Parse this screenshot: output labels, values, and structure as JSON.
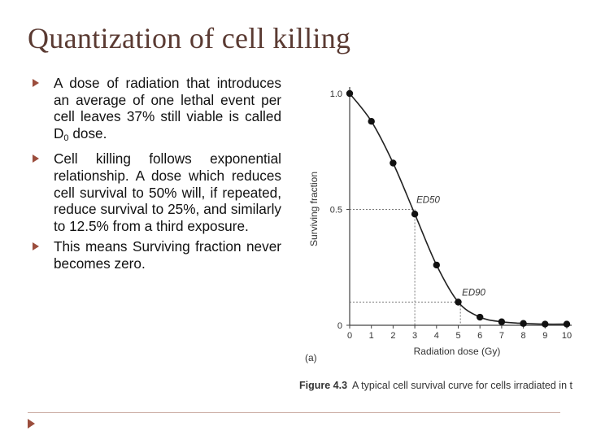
{
  "slide": {
    "title": "Quantization of cell killing",
    "bullets": [
      {
        "text_main": "A dose of radiation that introduces an average of one lethal event per cell leaves 37% still viable is called D",
        "subscript": "0",
        "text_after": " dose."
      },
      {
        "text_main": "Cell killing follows exponential relationship. A dose which reduces cell survival to 50% will, if repeated, reduce survival to 25%, and similarly to 12.5% from a third exposure.",
        "subscript": "",
        "text_after": ""
      },
      {
        "text_main": "This means Surviving  fraction never becomes zero.",
        "subscript": "",
        "text_after": ""
      }
    ]
  },
  "figure": {
    "panel_label": "(a)",
    "caption_prefix": "Figure 4.3",
    "caption_text": "A typical cell survival curve for cells irradiated in t"
  },
  "chart_data": {
    "type": "line",
    "title": "",
    "xlabel": "Radiation dose (Gy)",
    "ylabel": "Surviving fraction",
    "xlim": [
      0,
      10
    ],
    "ylim": [
      0,
      1.0
    ],
    "x_ticks": [
      "0",
      "1",
      "2",
      "3",
      "4",
      "5",
      "6",
      "7",
      "8",
      "9",
      "10"
    ],
    "y_ticks": [
      "0",
      "0.5",
      "1.0"
    ],
    "x": [
      0,
      1,
      2,
      3,
      4,
      5,
      6,
      7,
      8,
      9,
      10
    ],
    "series": [
      {
        "values": [
          1.0,
          0.88,
          0.7,
          0.48,
          0.26,
          0.1,
          0.035,
          0.015,
          0.008,
          0.005,
          0.005
        ]
      }
    ],
    "annotations": [
      {
        "text": "ED50",
        "x": 3,
        "y": 0.5
      },
      {
        "text": "ED90",
        "x": 5.1,
        "y": 0.1
      }
    ],
    "grid": false
  }
}
